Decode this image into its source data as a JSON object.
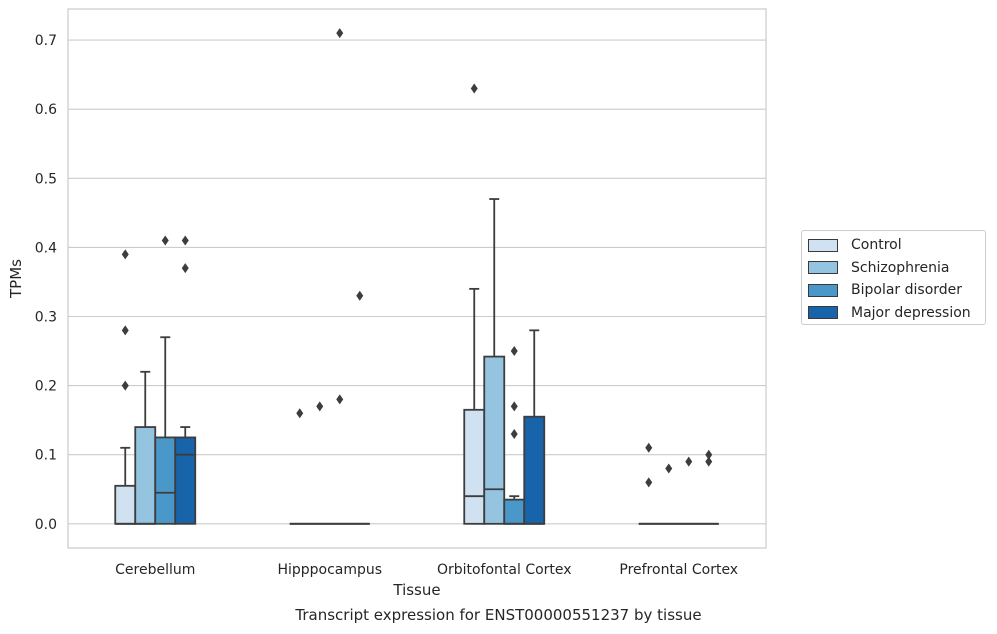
{
  "caption": "Transcript expression for ENST00000551237 by tissue",
  "chart_data": {
    "type": "boxplot",
    "xlabel": "Tissue",
    "ylabel": "TPMs",
    "ylim": [
      -0.035,
      0.745
    ],
    "yticks": [
      0.0,
      0.1,
      0.2,
      0.3,
      0.4,
      0.5,
      0.6,
      0.7
    ],
    "ytick_labels": [
      "0.0",
      "0.1",
      "0.2",
      "0.3",
      "0.4",
      "0.5",
      "0.6",
      "0.7"
    ],
    "grid": "horizontal",
    "legend_position": "right",
    "categories": [
      "Cerebellum",
      "Hipppocampus",
      "Orbitofontal Cortex",
      "Prefrontal Cortex"
    ],
    "series": [
      {
        "name": "Control",
        "color": "#d0e1f2",
        "boxes": [
          {
            "q1": 0.0,
            "median": 0.0,
            "q3": 0.055,
            "whisker_low": 0.0,
            "whisker_high": 0.11,
            "outliers": [
              0.2,
              0.28,
              0.39
            ]
          },
          {
            "q1": 0.0,
            "median": 0.0,
            "q3": 0.0,
            "whisker_low": 0.0,
            "whisker_high": 0.0,
            "outliers": [
              0.16
            ]
          },
          {
            "q1": 0.0,
            "median": 0.04,
            "q3": 0.165,
            "whisker_low": 0.0,
            "whisker_high": 0.34,
            "outliers": [
              0.63
            ]
          },
          {
            "q1": 0.0,
            "median": 0.0,
            "q3": 0.0,
            "whisker_low": 0.0,
            "whisker_high": 0.0,
            "outliers": [
              0.06,
              0.11
            ]
          }
        ]
      },
      {
        "name": "Schizophrenia",
        "color": "#94c4df",
        "boxes": [
          {
            "q1": 0.0,
            "median": 0.0,
            "q3": 0.14,
            "whisker_low": 0.0,
            "whisker_high": 0.22,
            "outliers": []
          },
          {
            "q1": 0.0,
            "median": 0.0,
            "q3": 0.0,
            "whisker_low": 0.0,
            "whisker_high": 0.0,
            "outliers": [
              0.17
            ]
          },
          {
            "q1": 0.0,
            "median": 0.05,
            "q3": 0.242,
            "whisker_low": 0.0,
            "whisker_high": 0.47,
            "outliers": []
          },
          {
            "q1": 0.0,
            "median": 0.0,
            "q3": 0.0,
            "whisker_low": 0.0,
            "whisker_high": 0.0,
            "outliers": [
              0.08
            ]
          }
        ]
      },
      {
        "name": "Bipolar disorder",
        "color": "#4a98c9",
        "boxes": [
          {
            "q1": 0.0,
            "median": 0.045,
            "q3": 0.125,
            "whisker_low": 0.0,
            "whisker_high": 0.27,
            "outliers": [
              0.41
            ]
          },
          {
            "q1": 0.0,
            "median": 0.0,
            "q3": 0.0,
            "whisker_low": 0.0,
            "whisker_high": 0.0,
            "outliers": [
              0.18,
              0.71
            ]
          },
          {
            "q1": 0.0,
            "median": 0.0,
            "q3": 0.035,
            "whisker_low": 0.0,
            "whisker_high": 0.04,
            "outliers": [
              0.13,
              0.17,
              0.25
            ]
          },
          {
            "q1": 0.0,
            "median": 0.0,
            "q3": 0.0,
            "whisker_low": 0.0,
            "whisker_high": 0.0,
            "outliers": [
              0.09
            ]
          }
        ]
      },
      {
        "name": "Major depression",
        "color": "#1764ab",
        "boxes": [
          {
            "q1": 0.0,
            "median": 0.1,
            "q3": 0.125,
            "whisker_low": 0.0,
            "whisker_high": 0.14,
            "outliers": [
              0.37,
              0.41
            ]
          },
          {
            "q1": 0.0,
            "median": 0.0,
            "q3": 0.0,
            "whisker_low": 0.0,
            "whisker_high": 0.0,
            "outliers": [
              0.33
            ]
          },
          {
            "q1": 0.0,
            "median": 0.0,
            "q3": 0.155,
            "whisker_low": 0.0,
            "whisker_high": 0.28,
            "outliers": []
          },
          {
            "q1": 0.0,
            "median": 0.0,
            "q3": 0.0,
            "whisker_low": 0.0,
            "whisker_high": 0.0,
            "outliers": [
              0.09,
              0.1
            ]
          }
        ]
      }
    ]
  }
}
